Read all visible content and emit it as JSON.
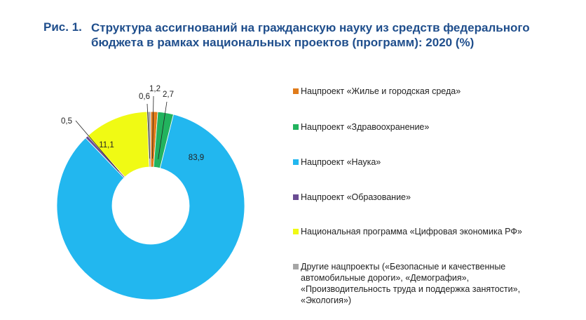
{
  "figure": {
    "label": "Рис. 1.",
    "title": "Структура ассигнований на гражданскую науку из средств федерального бюджета в рамках национальных проектов (программ): 2020 (%)"
  },
  "chart_data": {
    "type": "pie",
    "donut": true,
    "title": "Структура ассигнований на гражданскую науку из средств федерального бюджета в рамках национальных проектов (программ): 2020 (%)",
    "legend_position": "right",
    "slices": [
      {
        "name": "Нацпроект «Жилье и городская среда»",
        "value": 1.2,
        "label": "1,2",
        "color": "#e07b1a"
      },
      {
        "name": "Нацпроект «Здравоохранение»",
        "value": 2.7,
        "label": "2,7",
        "color": "#22b35e"
      },
      {
        "name": "Нацпроект «Наука»",
        "value": 83.9,
        "label": "83,9",
        "color": "#22b7ef"
      },
      {
        "name": "Нацпроект «Образование»",
        "value": 0.5,
        "label": "0,5",
        "color": "#6a4c93"
      },
      {
        "name": "Национальная программа «Цифровая экономика РФ»",
        "value": 11.1,
        "label": "11,1",
        "color": "#f0fa14"
      },
      {
        "name": "Другие нацпроекты («Безопасные и качественные автомобильные дороги», «Демография», «Производительность труда и поддержка занятости», «Экология»)",
        "value": 0.6,
        "label": "0,6",
        "color": "#a6a6a6"
      }
    ]
  }
}
